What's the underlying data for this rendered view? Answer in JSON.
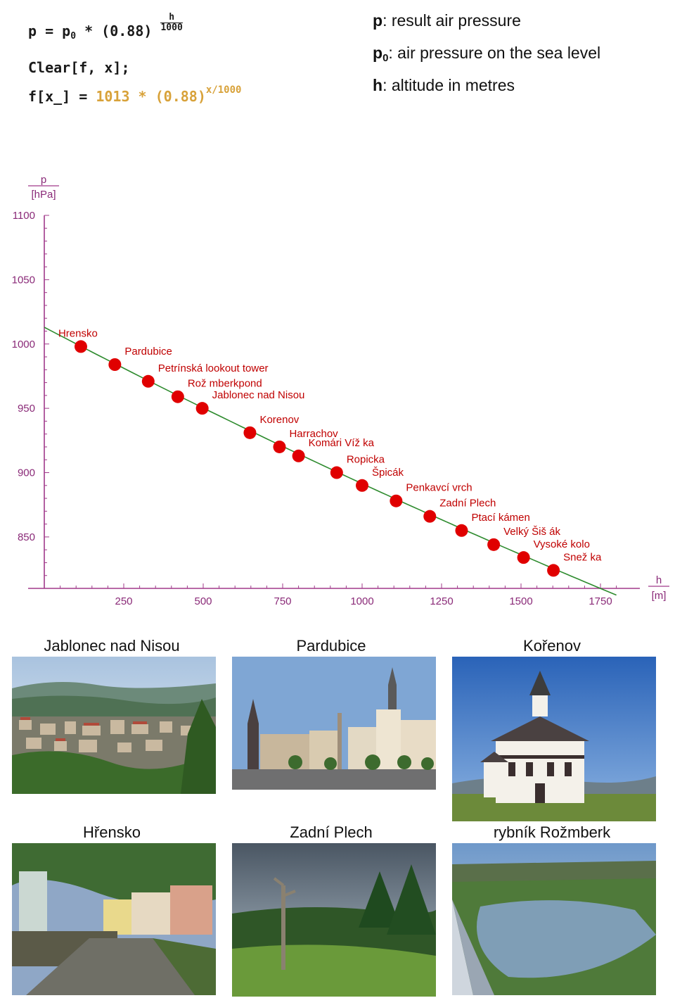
{
  "formula": {
    "line1_lhs": "p = p",
    "line1_sub": "0",
    "line1_mid": " * (0.88)",
    "line1_num": "h",
    "line1_den": "1000",
    "line2": "Clear[f, x];",
    "line3_lhs": "f[x_] = ",
    "line3_rhs": "1013 * (0.88)",
    "line3_exp": "x/1000"
  },
  "legend": [
    {
      "sym": "p",
      "sub": "",
      "text": ": result air pressure"
    },
    {
      "sym": "p",
      "sub": "0",
      "text": ": air pressure on the sea level"
    },
    {
      "sym": "h",
      "sub": "",
      "text": ": altitude in metres"
    }
  ],
  "chart_data": {
    "type": "scatter",
    "ylabel": "p",
    "ylabel_unit": "[hPa]",
    "xlabel": "h",
    "xlabel_unit": "[m]",
    "xlim": [
      -50,
      1810
    ],
    "ylim": [
      810,
      1100
    ],
    "x_ticks": [
      250,
      500,
      750,
      1000,
      1250,
      1500,
      1750
    ],
    "y_ticks": [
      850,
      900,
      950,
      1000,
      1050,
      1100
    ],
    "curve": {
      "p0": 1013,
      "base": 0.88,
      "h_start": 0,
      "h_end": 1810
    },
    "points": [
      {
        "label": "Hrensko",
        "h": 115,
        "p": 998
      },
      {
        "label": "Pardubice",
        "h": 222,
        "p": 984
      },
      {
        "label": "Petrínská lookout tower",
        "h": 327,
        "p": 971
      },
      {
        "label": "Rož mberkpond",
        "h": 420,
        "p": 959
      },
      {
        "label": "Jablonec nad Nisou",
        "h": 497,
        "p": 950
      },
      {
        "label": "Korenov",
        "h": 647,
        "p": 931
      },
      {
        "label": "Harrachov",
        "h": 740,
        "p": 920
      },
      {
        "label": "Komári Víž ka",
        "h": 800,
        "p": 913
      },
      {
        "label": "Ropicka",
        "h": 920,
        "p": 900
      },
      {
        "label": "Špicák",
        "h": 1000,
        "p": 890
      },
      {
        "label": "Penkavcí vrch",
        "h": 1107,
        "p": 878
      },
      {
        "label": "Zadní Plech",
        "h": 1213,
        "p": 866
      },
      {
        "label": "Ptací kámen",
        "h": 1313,
        "p": 855
      },
      {
        "label": "Velký Šiš ák",
        "h": 1414,
        "p": 844
      },
      {
        "label": "Vysoké kolo",
        "h": 1508,
        "p": 834
      },
      {
        "label": "Snež ka",
        "h": 1602,
        "p": 824
      }
    ],
    "colors": {
      "axis": "#a0398a",
      "curve": "#2e8b2e",
      "points": "#e00000",
      "labels": "#c00000",
      "ticks_text": "#8a2a78"
    }
  },
  "photos": [
    {
      "title": "Jablonec nad Nisou",
      "kind": "city"
    },
    {
      "title": "Pardubice",
      "kind": "square"
    },
    {
      "title": "Kořenov",
      "kind": "church"
    },
    {
      "title": "Hřensko",
      "kind": "river-town"
    },
    {
      "title": "Zadní Plech",
      "kind": "forest"
    },
    {
      "title": "rybník Rožmberk",
      "kind": "lake"
    }
  ]
}
